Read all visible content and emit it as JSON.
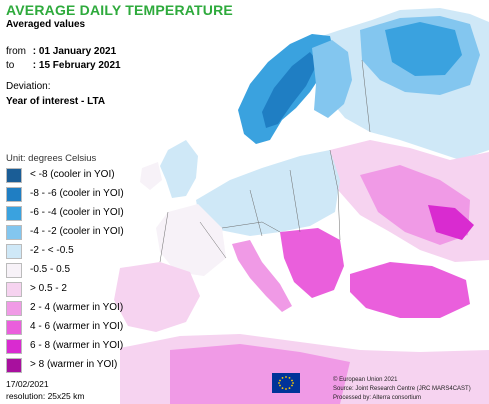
{
  "header": {
    "title": "AVERAGE DAILY TEMPERATURE",
    "subtitle": "Averaged values"
  },
  "period": {
    "from_label": "from",
    "from_value": ": 01 January 2021",
    "to_label": "to",
    "to_value": ": 15 February 2021"
  },
  "deviation": {
    "label": "Deviation:",
    "value": "Year of interest - LTA"
  },
  "legend": {
    "unit": "Unit: degrees Celsius",
    "classes": [
      {
        "label": "< -8 (cooler in YOI)",
        "color": "#1a5d96"
      },
      {
        "label": "-8 - -6 (cooler in YOI)",
        "color": "#1f7ec3"
      },
      {
        "label": "-6 - -4 (cooler in YOI)",
        "color": "#3aa2df"
      },
      {
        "label": "-4 - -2 (cooler in YOI)",
        "color": "#83c6ef"
      },
      {
        "label": "-2 - < -0.5",
        "color": "#cfe8f7"
      },
      {
        "label": "-0.5 - 0.5",
        "color": "#f7f2f8"
      },
      {
        "label": "> 0.5 - 2",
        "color": "#f6d3f0"
      },
      {
        "label": "2 - 4 (warmer in YOI)",
        "color": "#f09ae6"
      },
      {
        "label": "4 - 6 (warmer in YOI)",
        "color": "#ea5fdc"
      },
      {
        "label": "6 - 8 (warmer in YOI)",
        "color": "#d92bd0"
      },
      {
        "label": "> 8 (warmer in YOI)",
        "color": "#a8109e"
      }
    ]
  },
  "footer": {
    "date": "17/02/2021",
    "resolution": "resolution: 25x25 km",
    "credits": [
      "© European Union 2021",
      "Source: Joint Research Centre (JRC MARS4CAST)",
      "Processed by: Alterra consortium"
    ]
  },
  "map_colors": {
    "sea": "#ffffff",
    "neutral": "#f7f2f8",
    "cool_light": "#cfe8f7",
    "cool_mid": "#83c6ef",
    "cool_strong": "#3aa2df",
    "cool_very": "#1f7ec3",
    "warm_light": "#f6d3f0",
    "warm_mid": "#f09ae6",
    "warm_strong": "#ea5fdc",
    "warm_very": "#d92bd0",
    "border": "#6b6b6b"
  }
}
